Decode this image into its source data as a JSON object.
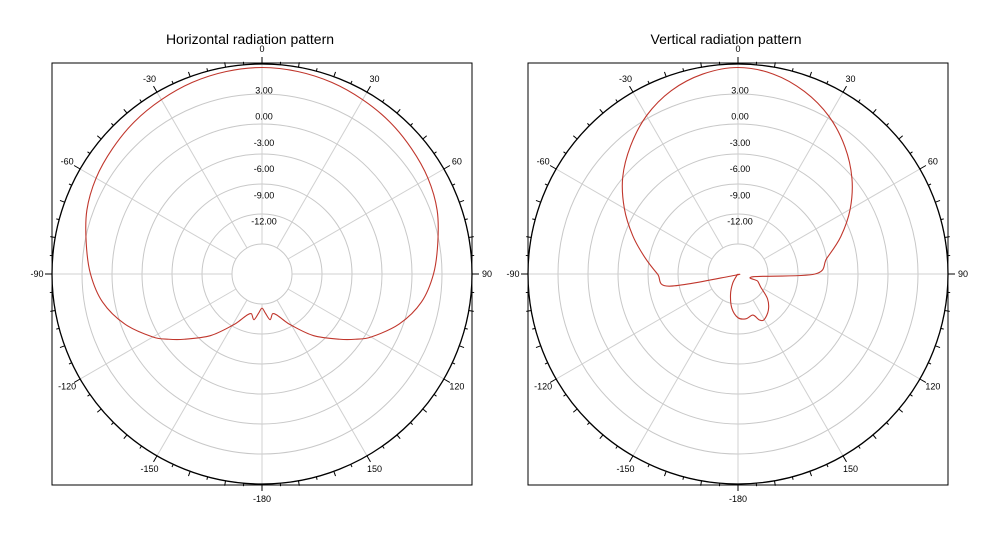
{
  "colors": {
    "pattern": "#c0362c",
    "grid": "#c8c8c8",
    "frame": "#000000"
  },
  "chart_data": [
    {
      "type": "polar-line",
      "title": "Horizontal radiation pattern",
      "angle_ticks": [
        {
          "angle": 0,
          "label": "0"
        },
        {
          "angle": 30,
          "label": "30"
        },
        {
          "angle": 60,
          "label": "60"
        },
        {
          "angle": 90,
          "label": "90"
        },
        {
          "angle": 120,
          "label": "120"
        },
        {
          "angle": 150,
          "label": "150"
        },
        {
          "angle": 180,
          "label": "-180"
        },
        {
          "angle": -150,
          "label": "-150"
        },
        {
          "angle": -120,
          "label": "-120"
        },
        {
          "angle": -90,
          "label": "-90"
        },
        {
          "angle": -60,
          "label": "-60"
        },
        {
          "angle": -30,
          "label": "-30"
        }
      ],
      "radial_range_db": [
        -18,
        6
      ],
      "radial_ticks": [
        3.0,
        0.0,
        -3.0,
        -6.0,
        -9.0,
        -12.0
      ],
      "radial_tick_labels": [
        "3.00",
        "0.00",
        "-3.00",
        "-6.00",
        "-9.00",
        "-12.00"
      ],
      "series": [
        {
          "name": "Horizontal",
          "angles": [
            0,
            10,
            20,
            30,
            40,
            50,
            60,
            70,
            80,
            90,
            100,
            110,
            120,
            125,
            130,
            140,
            150,
            155,
            160,
            165,
            170,
            175,
            180,
            -175,
            -170,
            -165,
            -160,
            -155,
            -150,
            -140,
            -130,
            -125,
            -120,
            -110,
            -100,
            -90,
            -80,
            -70,
            -60,
            -50,
            -40,
            -30,
            -20,
            -10
          ],
          "gain_db": [
            5.6,
            5.5,
            5.3,
            5.0,
            4.7,
            4.3,
            3.9,
            3.3,
            2.4,
            1.6,
            0.5,
            -1.3,
            -3.6,
            -5.0,
            -6.4,
            -8.8,
            -11.2,
            -12.2,
            -13.0,
            -13.3,
            -12.7,
            -13.5,
            -14.1,
            -13.5,
            -12.7,
            -13.3,
            -13.0,
            -12.2,
            -11.2,
            -8.8,
            -6.4,
            -5.0,
            -3.6,
            -1.3,
            0.5,
            1.6,
            2.4,
            3.3,
            3.9,
            4.3,
            4.7,
            5.0,
            5.3,
            5.5
          ]
        }
      ]
    },
    {
      "type": "polar-line",
      "title": "Vertical radiation pattern",
      "angle_ticks": [
        {
          "angle": 0,
          "label": "0"
        },
        {
          "angle": 30,
          "label": "30"
        },
        {
          "angle": 60,
          "label": "60"
        },
        {
          "angle": 90,
          "label": "90"
        },
        {
          "angle": 120,
          "label": "120"
        },
        {
          "angle": 150,
          "label": "150"
        },
        {
          "angle": 180,
          "label": "-180"
        },
        {
          "angle": -150,
          "label": "-150"
        },
        {
          "angle": -120,
          "label": "-120"
        },
        {
          "angle": -90,
          "label": "-90"
        },
        {
          "angle": -60,
          "label": "-60"
        },
        {
          "angle": -30,
          "label": "-30"
        }
      ],
      "radial_range_db": [
        -18,
        6
      ],
      "radial_ticks": [
        3.0,
        0.0,
        -3.0,
        -6.0,
        -9.0,
        -12.0
      ],
      "radial_tick_labels": [
        "3.00",
        "0.00",
        "-3.00",
        "-6.00",
        "-9.00",
        "-12.00"
      ],
      "series": [
        {
          "name": "Vertical",
          "angles": [
            0,
            10,
            20,
            30,
            40,
            50,
            60,
            70,
            80,
            90,
            100,
            110,
            120,
            130,
            140,
            150,
            155,
            160,
            170,
            180,
            -170,
            -160,
            -150,
            -140,
            -130,
            -120,
            -110,
            -100,
            -90,
            -80,
            -70,
            -60,
            -50,
            -40,
            -30,
            -20,
            -10
          ],
          "gain_db": [
            5.6,
            5.2,
            4.2,
            2.8,
            1.0,
            -1.0,
            -3.2,
            -5.5,
            -7.7,
            -9.2,
            -16.2,
            -15.6,
            -15.0,
            -13.6,
            -12.6,
            -12.0,
            -12.2,
            -13.0,
            -12.8,
            -13.0,
            -14.0,
            -15.5,
            -16.8,
            -17.8,
            -17.9,
            -17.9,
            -17.5,
            -10.0,
            -8.8,
            -7.2,
            -5.2,
            -3.0,
            -0.8,
            1.1,
            2.9,
            4.3,
            5.2
          ]
        }
      ]
    }
  ]
}
